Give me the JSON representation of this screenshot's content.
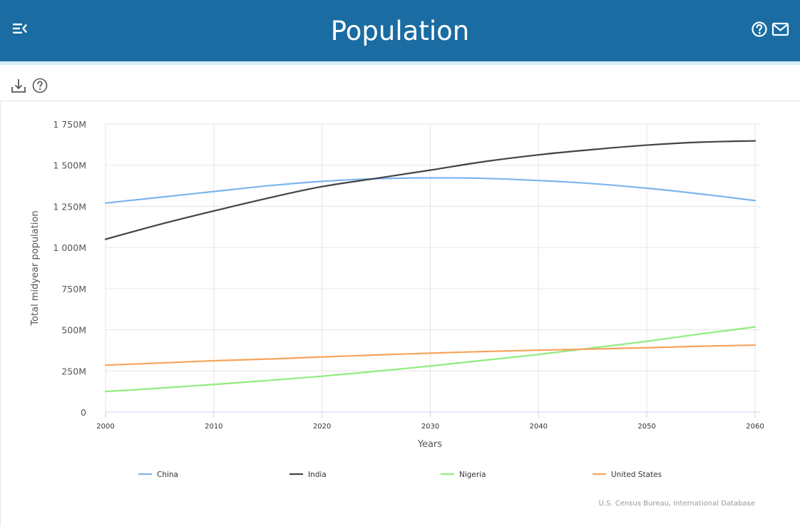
{
  "header": {
    "title": "Population",
    "menu_icon": "menu-collapse-icon",
    "help_icon": "help-circle-icon",
    "mail_icon": "mail-icon"
  },
  "toolbar": {
    "download_icon": "download-icon",
    "help_icon": "help-circle-icon"
  },
  "colors": {
    "header_bg": "#1a6ca2",
    "china": "#7cb5ec",
    "india": "#434348",
    "nigeria": "#90ed7d",
    "united_states": "#f7a35c"
  },
  "chart_data": {
    "type": "line",
    "xlabel": "Years",
    "ylabel": "Total midyear population",
    "xlim": [
      2000,
      2060
    ],
    "ylim": [
      0,
      1750
    ],
    "x_ticks": [
      2000,
      2010,
      2020,
      2030,
      2040,
      2050,
      2060
    ],
    "x_tick_labels": [
      "2000",
      "2010",
      "2020",
      "2030",
      "2040",
      "2050",
      "2060"
    ],
    "y_ticks": [
      0,
      250,
      500,
      750,
      1000,
      1250,
      1500,
      1750
    ],
    "y_tick_labels": [
      "0",
      "250M",
      "500M",
      "750M",
      "1 000M",
      "1 250M",
      "1 500M",
      "1 750M"
    ],
    "grid": true,
    "legend_position": "bottom",
    "credits": "U.S. Census Bureau, International Database",
    "x": [
      2000,
      2005,
      2010,
      2015,
      2020,
      2025,
      2030,
      2035,
      2040,
      2045,
      2050,
      2055,
      2060
    ],
    "series": [
      {
        "name": "China",
        "color": "#7cb5ec",
        "values": [
          1270,
          1305,
          1340,
          1375,
          1402,
          1418,
          1423,
          1420,
          1407,
          1388,
          1360,
          1325,
          1285
        ]
      },
      {
        "name": "India",
        "color": "#434348",
        "values": [
          1050,
          1140,
          1222,
          1300,
          1370,
          1420,
          1470,
          1522,
          1563,
          1595,
          1622,
          1640,
          1648
        ]
      },
      {
        "name": "Nigeria",
        "color": "#90ed7d",
        "values": [
          125,
          145,
          168,
          192,
          218,
          248,
          280,
          315,
          350,
          390,
          430,
          475,
          517
        ]
      },
      {
        "name": "United States",
        "color": "#f7a35c",
        "values": [
          285,
          298,
          312,
          322,
          335,
          347,
          358,
          368,
          376,
          383,
          391,
          400,
          407
        ]
      }
    ]
  }
}
